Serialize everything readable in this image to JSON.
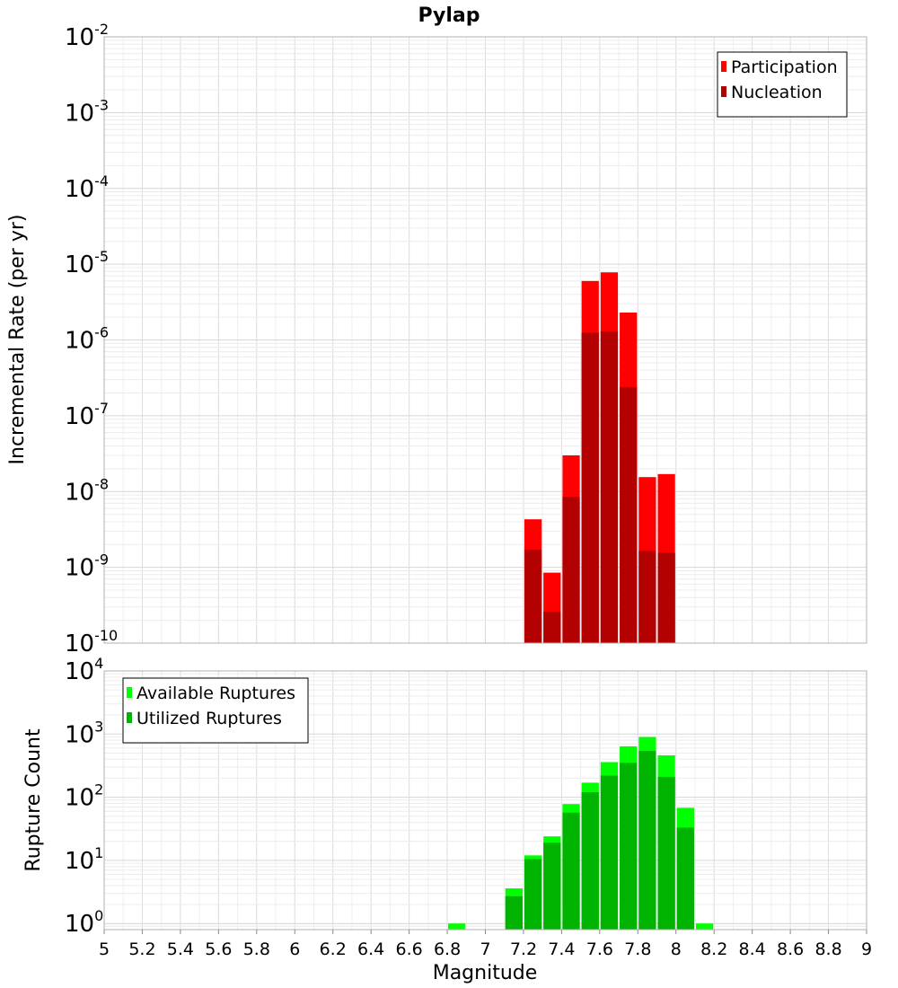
{
  "chart_data": [
    {
      "type": "bar",
      "title": "Pylap",
      "ylabel": "Incremental Rate (per yr)",
      "yscale": "log",
      "ylim": [
        1e-10,
        0.01
      ],
      "xlim": [
        5,
        9
      ],
      "y_tick_exponents": [
        "-10",
        "-9",
        "-8",
        "-7",
        "-6",
        "-5",
        "-4",
        "-3",
        "-2"
      ],
      "bin_width": 0.1,
      "legend_position": "top-right",
      "series": [
        {
          "name": "Participation",
          "color": "#ff0000",
          "x": [
            7.25,
            7.35,
            7.45,
            7.55,
            7.65,
            7.75,
            7.85,
            7.95
          ],
          "values": [
            4.3e-09,
            8.5e-10,
            3e-08,
            6e-06,
            7.8e-06,
            2.3e-06,
            1.55e-08,
            1.7e-08
          ]
        },
        {
          "name": "Nucleation",
          "color": "#b30000",
          "x": [
            7.25,
            7.35,
            7.45,
            7.55,
            7.65,
            7.75,
            7.85,
            7.95
          ],
          "values": [
            1.7e-09,
            2.6e-10,
            8.5e-09,
            1.25e-06,
            1.3e-06,
            2.4e-07,
            1.65e-09,
            1.55e-09
          ]
        }
      ]
    },
    {
      "type": "bar",
      "ylabel": "Rupture Count",
      "xlabel": "Magnitude",
      "yscale": "log",
      "ylim": [
        0.8,
        10000
      ],
      "xlim": [
        5,
        9
      ],
      "y_ticks": [
        1,
        10,
        100,
        1000,
        10000
      ],
      "y_tick_exponents": [
        "0",
        "1",
        "2",
        "3",
        "4"
      ],
      "x_ticks": [
        "5",
        "5.2",
        "5.4",
        "5.6",
        "5.8",
        "6",
        "6.2",
        "6.4",
        "6.6",
        "6.8",
        "7",
        "7.2",
        "7.4",
        "7.6",
        "7.8",
        "8",
        "8.2",
        "8.4",
        "8.6",
        "8.8",
        "9"
      ],
      "bin_width": 0.1,
      "legend_position": "top-left",
      "series": [
        {
          "name": "Available Ruptures",
          "color": "#00ff00",
          "x": [
            6.85,
            7.15,
            7.25,
            7.35,
            7.45,
            7.55,
            7.65,
            7.75,
            7.85,
            7.95,
            8.05,
            8.15
          ],
          "values": [
            1,
            3.6,
            12,
            24,
            78,
            170,
            360,
            640,
            900,
            460,
            68,
            1
          ]
        },
        {
          "name": "Utilized Ruptures",
          "color": "#00b300",
          "x": [
            7.15,
            7.25,
            7.35,
            7.45,
            7.55,
            7.65,
            7.75,
            7.85,
            7.95,
            8.05
          ],
          "values": [
            2.7,
            10.5,
            19,
            57,
            120,
            220,
            350,
            540,
            210,
            33
          ]
        }
      ]
    }
  ]
}
